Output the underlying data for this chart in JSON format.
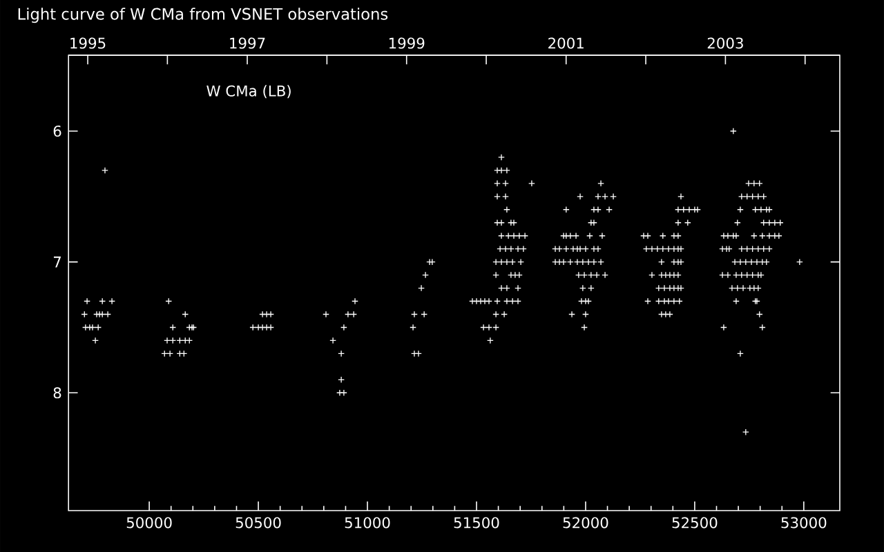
{
  "chart_data": {
    "type": "scatter",
    "title": "Light curve of W CMa from VSNET observations",
    "annotations": [
      "W CMa (LB)"
    ],
    "xlim": [
      49630,
      53165
    ],
    "ylim": [
      8.9,
      5.42
    ],
    "xticks": [
      50000,
      50500,
      51000,
      51500,
      52000,
      52500,
      53000
    ],
    "yticks": [
      6,
      7,
      8
    ],
    "x2lim": [
      "1994-10-05",
      "2004-06-08"
    ],
    "x2ticks": [
      "1995",
      {
        "value": "1996",
        "label": null
      },
      "1997",
      {
        "value": "1998",
        "label": null
      },
      "1999",
      {
        "value": "2000",
        "label": null
      },
      "2001",
      {
        "value": "2002",
        "label": null
      },
      "2003",
      {
        "value": "2004",
        "label": null
      }
    ],
    "marker": "cross",
    "series": [
      {
        "color": "#ffffff",
        "x": [
          49715,
          49785,
          49829,
          49703,
          49759,
          49772,
          49785,
          49810,
          49708,
          49727,
          49740,
          49766,
          49753,
          49797,
          50089,
          50165,
          50108,
          50184,
          50196,
          50203,
          50082,
          50108,
          50140,
          50165,
          50184,
          50070,
          50095,
          50140,
          50159,
          50519,
          50538,
          50557,
          50475,
          50500,
          50519,
          50538,
          50557,
          50943,
          50810,
          50911,
          50937,
          50892,
          50842,
          50880,
          50880,
          50873,
          50892,
          51285,
          51297,
          51266,
          51247,
          51215,
          51260,
          51209,
          51215,
          51234,
          51614,
          51595,
          51614,
          51639,
          51595,
          51633,
          51753,
          51595,
          51633,
          51639,
          51595,
          51614,
          51658,
          51671,
          51614,
          51646,
          51671,
          51696,
          51722,
          51608,
          51633,
          51658,
          51690,
          51715,
          51589,
          51614,
          51639,
          51665,
          51703,
          51589,
          51658,
          51677,
          51696,
          51614,
          51639,
          51690,
          51481,
          51500,
          51519,
          51538,
          51557,
          51595,
          51639,
          51665,
          51690,
          51589,
          51627,
          51532,
          51557,
          51589,
          51563,
          52070,
          51975,
          52057,
          52089,
          52127,
          51911,
          52038,
          52057,
          52108,
          52025,
          52038,
          51899,
          51911,
          51930,
          51956,
          52019,
          52076,
          51861,
          51880,
          51911,
          51943,
          51962,
          51975,
          52000,
          52038,
          52057,
          51861,
          51880,
          51899,
          51930,
          51962,
          51987,
          52013,
          52038,
          52070,
          51968,
          51994,
          52025,
          52051,
          52089,
          51987,
          52025,
          51981,
          52000,
          52013,
          51937,
          52000,
          51994,
          52437,
          52424,
          52449,
          52475,
          52500,
          52513,
          52424,
          52468,
          52266,
          52285,
          52354,
          52405,
          52424,
          52278,
          52304,
          52329,
          52354,
          52380,
          52405,
          52424,
          52437,
          52348,
          52405,
          52424,
          52437,
          52304,
          52348,
          52367,
          52386,
          52405,
          52424,
          52335,
          52361,
          52386,
          52405,
          52424,
          52437,
          52285,
          52335,
          52361,
          52380,
          52405,
          52430,
          52348,
          52367,
          52386,
          52677,
          52747,
          52772,
          52797,
          52715,
          52740,
          52765,
          52791,
          52816,
          52709,
          52778,
          52804,
          52829,
          52842,
          52696,
          52816,
          52842,
          52867,
          52892,
          52633,
          52652,
          52677,
          52690,
          52772,
          52810,
          52842,
          52867,
          52886,
          52627,
          52646,
          52658,
          52715,
          52740,
          52765,
          52791,
          52816,
          52842,
          52684,
          52709,
          52734,
          52760,
          52785,
          52810,
          52829,
          52981,
          52627,
          52652,
          52690,
          52715,
          52740,
          52765,
          52791,
          52804,
          52671,
          52696,
          52722,
          52753,
          52772,
          52791,
          52690,
          52778,
          52785,
          52797,
          52633,
          52810,
          52709,
          52734
        ],
        "values": [
          7.3,
          7.3,
          7.3,
          7.4,
          7.4,
          7.4,
          7.4,
          7.4,
          7.5,
          7.5,
          7.5,
          7.5,
          7.6,
          6.3,
          7.3,
          7.4,
          7.5,
          7.5,
          7.5,
          7.5,
          7.6,
          7.6,
          7.6,
          7.6,
          7.6,
          7.7,
          7.7,
          7.7,
          7.7,
          7.4,
          7.4,
          7.4,
          7.5,
          7.5,
          7.5,
          7.5,
          7.5,
          7.3,
          7.4,
          7.4,
          7.4,
          7.5,
          7.6,
          7.7,
          7.9,
          8.0,
          8.0,
          7.0,
          7.0,
          7.1,
          7.2,
          7.4,
          7.4,
          7.5,
          7.7,
          7.7,
          6.2,
          6.3,
          6.3,
          6.3,
          6.4,
          6.4,
          6.4,
          6.5,
          6.5,
          6.6,
          6.7,
          6.7,
          6.7,
          6.7,
          6.8,
          6.8,
          6.8,
          6.8,
          6.8,
          6.9,
          6.9,
          6.9,
          6.9,
          6.9,
          7.0,
          7.0,
          7.0,
          7.0,
          7.0,
          7.1,
          7.1,
          7.1,
          7.1,
          7.2,
          7.2,
          7.2,
          7.3,
          7.3,
          7.3,
          7.3,
          7.3,
          7.3,
          7.3,
          7.3,
          7.3,
          7.4,
          7.4,
          7.5,
          7.5,
          7.5,
          7.6,
          6.4,
          6.5,
          6.5,
          6.5,
          6.5,
          6.6,
          6.6,
          6.6,
          6.6,
          6.7,
          6.7,
          6.8,
          6.8,
          6.8,
          6.8,
          6.8,
          6.8,
          6.9,
          6.9,
          6.9,
          6.9,
          6.9,
          6.9,
          6.9,
          6.9,
          6.9,
          7.0,
          7.0,
          7.0,
          7.0,
          7.0,
          7.0,
          7.0,
          7.0,
          7.0,
          7.1,
          7.1,
          7.1,
          7.1,
          7.1,
          7.2,
          7.2,
          7.3,
          7.3,
          7.3,
          7.4,
          7.4,
          7.5,
          6.5,
          6.6,
          6.6,
          6.6,
          6.6,
          6.6,
          6.7,
          6.7,
          6.8,
          6.8,
          6.8,
          6.8,
          6.8,
          6.9,
          6.9,
          6.9,
          6.9,
          6.9,
          6.9,
          6.9,
          6.9,
          7.0,
          7.0,
          7.0,
          7.0,
          7.1,
          7.1,
          7.1,
          7.1,
          7.1,
          7.1,
          7.2,
          7.2,
          7.2,
          7.2,
          7.2,
          7.2,
          7.3,
          7.3,
          7.3,
          7.3,
          7.3,
          7.3,
          7.4,
          7.4,
          7.4,
          6.0,
          6.4,
          6.4,
          6.4,
          6.5,
          6.5,
          6.5,
          6.5,
          6.5,
          6.6,
          6.6,
          6.6,
          6.6,
          6.6,
          6.7,
          6.7,
          6.7,
          6.7,
          6.7,
          6.8,
          6.8,
          6.8,
          6.8,
          6.8,
          6.8,
          6.8,
          6.8,
          6.8,
          6.9,
          6.9,
          6.9,
          6.9,
          6.9,
          6.9,
          6.9,
          6.9,
          6.9,
          7.0,
          7.0,
          7.0,
          7.0,
          7.0,
          7.0,
          7.0,
          7.0,
          7.1,
          7.1,
          7.1,
          7.1,
          7.1,
          7.1,
          7.1,
          7.1,
          7.2,
          7.2,
          7.2,
          7.2,
          7.2,
          7.2,
          7.3,
          7.3,
          7.3,
          7.4,
          7.5,
          7.5,
          7.7,
          8.3
        ]
      }
    ]
  }
}
